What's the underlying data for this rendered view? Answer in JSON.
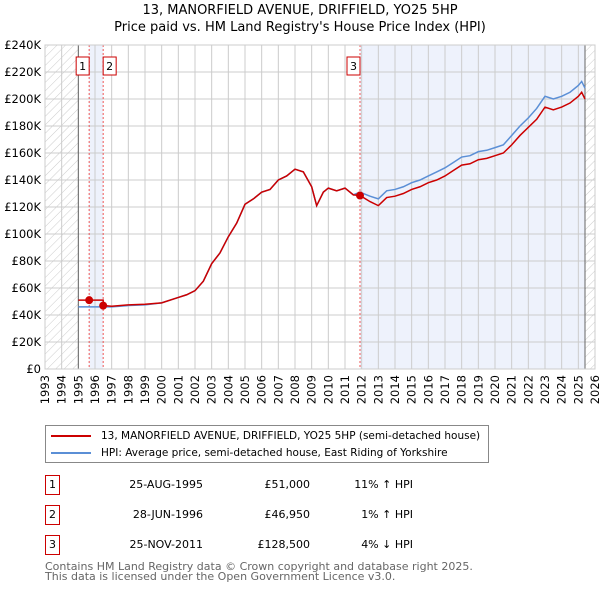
{
  "title": "13, MANORFIELD AVENUE, DRIFFIELD, YO25 5HP",
  "subtitle": "Price paid vs. HM Land Registry's House Price Index (HPI)",
  "chart_data": {
    "type": "line",
    "ylim": [
      0,
      240000
    ],
    "xlim": [
      1993,
      2026
    ],
    "yticks": [
      {
        "v": 0,
        "l": "£0"
      },
      {
        "v": 20000,
        "l": "£20K"
      },
      {
        "v": 40000,
        "l": "£40K"
      },
      {
        "v": 60000,
        "l": "£60K"
      },
      {
        "v": 80000,
        "l": "£80K"
      },
      {
        "v": 100000,
        "l": "£100K"
      },
      {
        "v": 120000,
        "l": "£120K"
      },
      {
        "v": 140000,
        "l": "£140K"
      },
      {
        "v": 160000,
        "l": "£160K"
      },
      {
        "v": 180000,
        "l": "£180K"
      },
      {
        "v": 200000,
        "l": "£200K"
      },
      {
        "v": 220000,
        "l": "£220K"
      },
      {
        "v": 240000,
        "l": "£240K"
      }
    ],
    "xticks": [
      "1993",
      "1994",
      "1995",
      "1996",
      "1997",
      "1998",
      "1999",
      "2000",
      "2001",
      "2002",
      "2003",
      "2004",
      "2005",
      "2006",
      "2007",
      "2008",
      "2009",
      "2010",
      "2011",
      "2012",
      "2013",
      "2014",
      "2015",
      "2016",
      "2017",
      "2018",
      "2019",
      "2020",
      "2021",
      "2022",
      "2023",
      "2024",
      "2025",
      "2026"
    ],
    "series": [
      {
        "name": "13, MANORFIELD AVENUE, DRIFFIELD, YO25 5HP (semi-detached house)",
        "color": "#cc0000",
        "x": [
          1995.0,
          1996.49,
          1996.5,
          1997,
          1998,
          1999,
          2000,
          2001,
          2001.5,
          2002,
          2002.5,
          2003,
          2003.5,
          2004,
          2004.5,
          2005,
          2005.5,
          2006,
          2006.5,
          2007,
          2007.5,
          2008,
          2008.5,
          2009,
          2009.3,
          2009.7,
          2010,
          2010.5,
          2011,
          2011.5,
          2011.9,
          2012.5,
          2013,
          2013.5,
          2014,
          2014.5,
          2015,
          2015.5,
          2016,
          2016.5,
          2017,
          2017.5,
          2018,
          2018.5,
          2019,
          2019.5,
          2020,
          2020.5,
          2021,
          2021.5,
          2022,
          2022.5,
          2023,
          2023.5,
          2024,
          2024.5,
          2025,
          2025.2,
          2025.4
        ],
        "y": [
          51000,
          51000,
          47000,
          46500,
          47500,
          48000,
          49000,
          53000,
          55000,
          58000,
          65000,
          78000,
          86000,
          98000,
          108000,
          122000,
          126000,
          131000,
          133000,
          140000,
          143000,
          148000,
          146000,
          135000,
          121000,
          131000,
          134000,
          132000,
          134000,
          129000,
          128500,
          124000,
          121000,
          127000,
          128000,
          130000,
          133000,
          135000,
          138000,
          140000,
          143000,
          147000,
          151000,
          152000,
          155000,
          156000,
          158000,
          160000,
          166000,
          173000,
          179000,
          185000,
          194000,
          192000,
          194000,
          197000,
          202000,
          205000,
          200000
        ]
      },
      {
        "name": "HPI: Average price, semi-detached house, East Riding of Yorkshire",
        "color": "#5b8fd6",
        "x": [
          1995.0,
          1996,
          1997,
          1998,
          1999,
          2000,
          2001,
          2001.5,
          2002,
          2002.5,
          2003,
          2003.5,
          2004,
          2004.5,
          2005,
          2005.5,
          2006,
          2006.5,
          2007,
          2007.5,
          2008,
          2008.5,
          2009,
          2009.3,
          2009.7,
          2010,
          2010.5,
          2011,
          2011.5,
          2011.9,
          2012.5,
          2013,
          2013.5,
          2014,
          2014.5,
          2015,
          2015.5,
          2016,
          2016.5,
          2017,
          2017.5,
          2018,
          2018.5,
          2019,
          2019.5,
          2020,
          2020.5,
          2021,
          2021.5,
          2022,
          2022.5,
          2023,
          2023.5,
          2024,
          2024.5,
          2025,
          2025.2,
          2025.4
        ],
        "y": [
          46000,
          46000,
          46000,
          47000,
          47500,
          49000,
          53000,
          55000,
          58000,
          65000,
          78000,
          86000,
          98000,
          108000,
          122000,
          126000,
          131000,
          133000,
          140000,
          143000,
          148000,
          146000,
          135000,
          121000,
          131000,
          134000,
          132000,
          134000,
          129000,
          131000,
          128000,
          126000,
          132000,
          133000,
          135000,
          138000,
          140000,
          143000,
          146000,
          149000,
          153000,
          157000,
          158000,
          161000,
          162000,
          164000,
          166000,
          173000,
          180000,
          186000,
          193000,
          202000,
          200000,
          202000,
          205000,
          210000,
          213000,
          208000
        ]
      }
    ],
    "markers": [
      {
        "n": "1",
        "x": 1995.65,
        "y": 51000
      },
      {
        "n": "2",
        "x": 1996.49,
        "y": 46950
      },
      {
        "n": "3",
        "x": 2011.9,
        "y": 128500
      }
    ]
  },
  "legend": {
    "red": "13, MANORFIELD AVENUE, DRIFFIELD, YO25 5HP (semi-detached house)",
    "blue": "HPI: Average price, semi-detached house, East Riding of Yorkshire"
  },
  "transactions": [
    {
      "num": "1",
      "date": "25-AUG-1995",
      "price": "£51,000",
      "hpi": "11% ↑ HPI"
    },
    {
      "num": "2",
      "date": "28-JUN-1996",
      "price": "£46,950",
      "hpi": "1% ↑ HPI"
    },
    {
      "num": "3",
      "date": "25-NOV-2011",
      "price": "£128,500",
      "hpi": "4% ↓ HPI"
    }
  ],
  "footer": [
    "Contains HM Land Registry data © Crown copyright and database right 2025.",
    "This data is licensed under the Open Government Licence v3.0."
  ]
}
